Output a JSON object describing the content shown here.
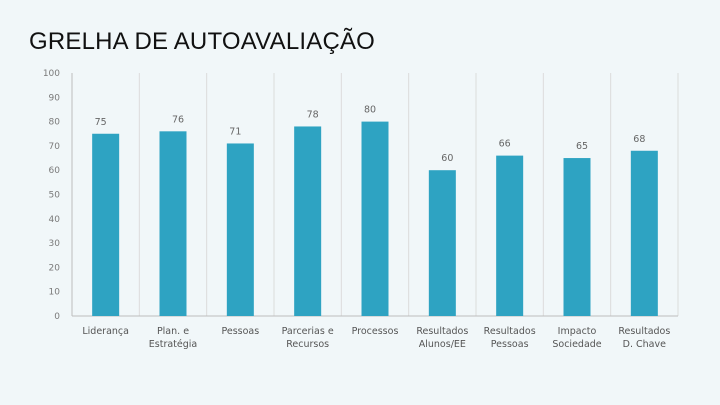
{
  "slide": {
    "title": "GRELHA DE AUTOAVALIAÇÃO"
  },
  "chart_data": {
    "type": "bar",
    "categories": [
      [
        "Liderança"
      ],
      [
        "Plan. e",
        "Estratégia"
      ],
      [
        "Pessoas"
      ],
      [
        "Parcerias e",
        "Recursos"
      ],
      [
        "Processos"
      ],
      [
        "Resultados",
        "Alunos/EE"
      ],
      [
        "Resultados",
        "Pessoas"
      ],
      [
        "Impacto",
        "Sociedade"
      ],
      [
        "Resultados",
        "D. Chave"
      ]
    ],
    "values": [
      75,
      76,
      71,
      78,
      80,
      60,
      66,
      65,
      68
    ],
    "data_labels": [
      "75",
      "76",
      "71",
      "78",
      "80",
      "60",
      "66",
      "65",
      "68"
    ],
    "ylim": [
      0,
      100
    ],
    "yticks": [
      0,
      10,
      20,
      30,
      40,
      50,
      60,
      70,
      80,
      90,
      100
    ],
    "ytick_labels": [
      "0",
      "10",
      "20",
      "30",
      "40",
      "50",
      "60",
      "70",
      "80",
      "90",
      "100"
    ],
    "bar_color": "#2ea3c2",
    "grid": "vertical separators",
    "legend": "none"
  }
}
